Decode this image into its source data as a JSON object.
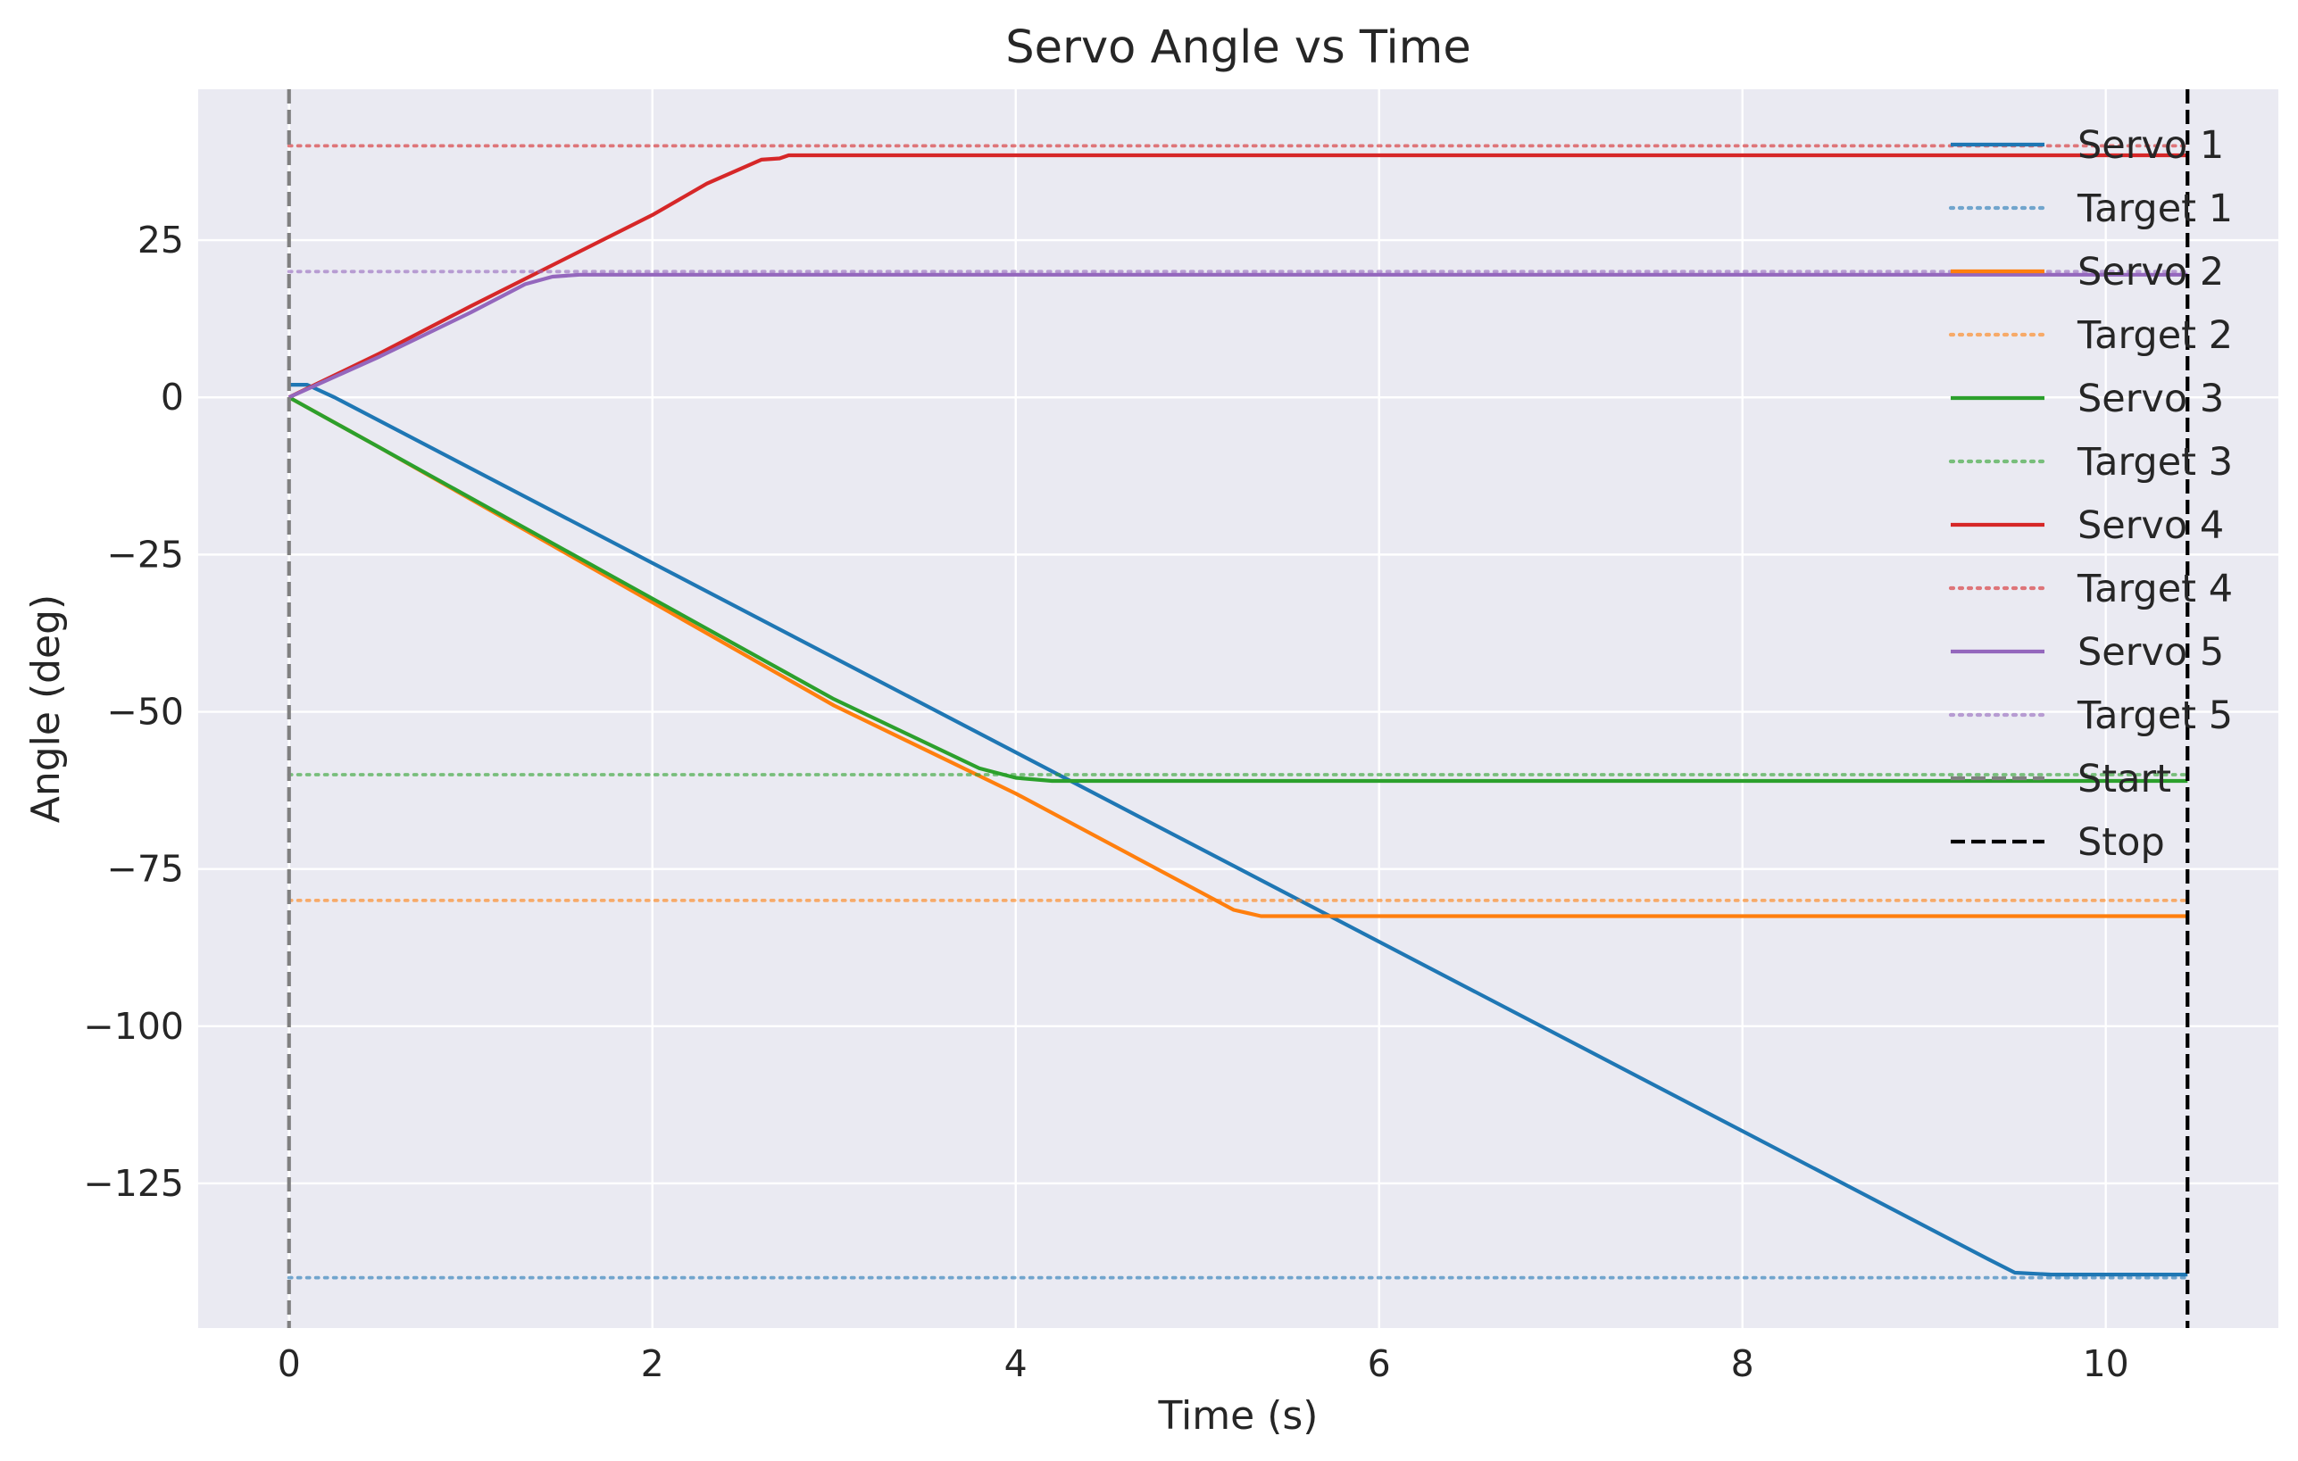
{
  "chart_data": {
    "type": "line",
    "title": "Servo Angle vs Time",
    "xlabel": "Time (s)",
    "ylabel": "Angle (deg)",
    "xlim": [
      -0.5,
      10.95
    ],
    "ylim": [
      -148,
      49
    ],
    "xticks": [
      0,
      2,
      4,
      6,
      8,
      10
    ],
    "yticks": [
      25,
      0,
      -25,
      -50,
      -75,
      -100,
      -125
    ],
    "ytick_labels": [
      "25",
      "0",
      "−25",
      "−50",
      "−75",
      "−100",
      "−125"
    ],
    "grid": true,
    "background": "#eaeaf2",
    "legend_position": "top-right",
    "series": [
      {
        "name": "Servo 1",
        "style": "solid",
        "color": "#1f77b4",
        "x": [
          0,
          0.1,
          0.25,
          9.35,
          9.5,
          9.7,
          10.45
        ],
        "y": [
          2,
          2,
          0,
          -137,
          -139.2,
          -139.5,
          -139.5
        ]
      },
      {
        "name": "Target 1",
        "style": "dotted",
        "color": "#1f77b4",
        "x": [
          0,
          10.45
        ],
        "y": [
          -140,
          -140
        ]
      },
      {
        "name": "Servo 2",
        "style": "solid",
        "color": "#ff7f0e",
        "x": [
          0,
          0.5,
          3.0,
          4.0,
          5.2,
          5.35,
          6.0,
          10.45
        ],
        "y": [
          0,
          -8,
          -49,
          -63,
          -81.5,
          -82.5,
          -82.5,
          -82.5
        ]
      },
      {
        "name": "Target 2",
        "style": "dotted",
        "color": "#ff7f0e",
        "x": [
          0,
          10.45
        ],
        "y": [
          -80,
          -80
        ]
      },
      {
        "name": "Servo 3",
        "style": "solid",
        "color": "#2ca02c",
        "x": [
          0,
          0.5,
          2.0,
          3.0,
          3.8,
          4.0,
          4.2,
          10.45
        ],
        "y": [
          0,
          -8,
          -32,
          -48,
          -59,
          -60.5,
          -61,
          -61
        ]
      },
      {
        "name": "Target 3",
        "style": "dotted",
        "color": "#2ca02c",
        "x": [
          0,
          10.45
        ],
        "y": [
          -60,
          -60
        ]
      },
      {
        "name": "Servo 4",
        "style": "solid",
        "color": "#d62728",
        "x": [
          0,
          0.5,
          1.0,
          2.0,
          2.3,
          2.6,
          2.7,
          2.75,
          10.45
        ],
        "y": [
          0,
          7,
          14.5,
          29,
          34,
          37.8,
          38,
          38.5,
          38.5
        ]
      },
      {
        "name": "Target 4",
        "style": "dotted",
        "color": "#d62728",
        "x": [
          0,
          10.45
        ],
        "y": [
          40,
          40
        ]
      },
      {
        "name": "Servo 5",
        "style": "solid",
        "color": "#9467bd",
        "x": [
          0,
          0.5,
          1.0,
          1.3,
          1.45,
          1.6,
          10.45
        ],
        "y": [
          0,
          6.5,
          13.5,
          18,
          19.2,
          19.5,
          19.5
        ]
      },
      {
        "name": "Target 5",
        "style": "dotted",
        "color": "#9467bd",
        "x": [
          0,
          10.45
        ],
        "y": [
          20,
          20
        ]
      }
    ],
    "vlines": [
      {
        "name": "Start",
        "x": 0,
        "color": "#808080",
        "style": "dashed"
      },
      {
        "name": "Stop",
        "x": 10.45,
        "color": "#000000",
        "style": "dashed"
      }
    ]
  }
}
